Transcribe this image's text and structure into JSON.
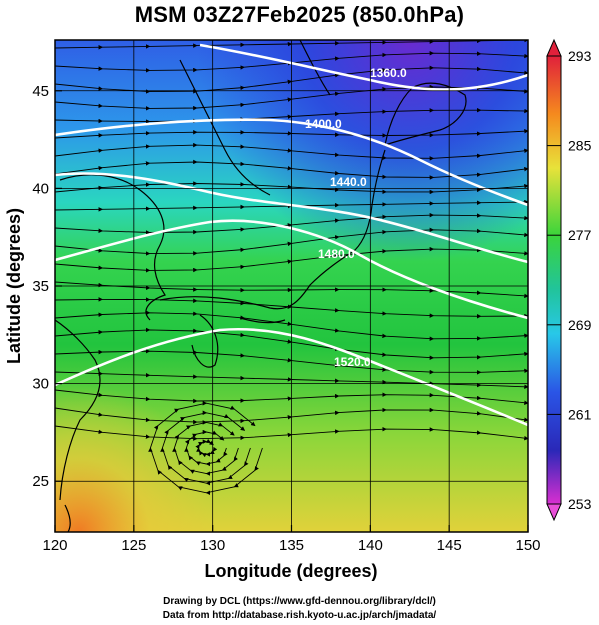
{
  "title": "MSM 03Z27Feb2025 (850.0hPa)",
  "axes": {
    "xlabel": "Longitude (degrees)",
    "ylabel": "Latitude  (degrees)",
    "xlim": [
      120,
      150
    ],
    "ylim": [
      22.4,
      47.6
    ],
    "xticks": [
      "120",
      "125",
      "130",
      "135",
      "140",
      "145",
      "150"
    ],
    "yticks": [
      "25",
      "30",
      "35",
      "40",
      "45"
    ]
  },
  "contours": {
    "labels": [
      "1360.0",
      "1400.0",
      "1440.0",
      "1480.0",
      "1520.0"
    ],
    "color": "#ffffff"
  },
  "colorbar": {
    "ticks": [
      "293",
      "285",
      "277",
      "269",
      "261",
      "253"
    ]
  },
  "footer": {
    "line1": "Drawing by DCL (https://www.gfd-dennou.org/library/dcl/)",
    "line2": "Data from http://database.rish.kyoto-u.ac.jp/arch/jmadata/"
  },
  "chart_data": {
    "type": "heatmap",
    "title": "MSM 03Z27Feb2025 (850.0hPa)",
    "xlabel": "Longitude (degrees)",
    "ylabel": "Latitude  (degrees)",
    "xlim": [
      120,
      150
    ],
    "ylim": [
      22.4,
      47.6
    ],
    "colorbar_range": [
      253,
      293
    ],
    "colorbar_ticks": [
      253,
      261,
      269,
      277,
      285,
      293
    ],
    "contour_labels": [
      1360.0,
      1400.0,
      1440.0,
      1480.0,
      1520.0
    ],
    "overlay": "streamlines",
    "grid": true
  }
}
